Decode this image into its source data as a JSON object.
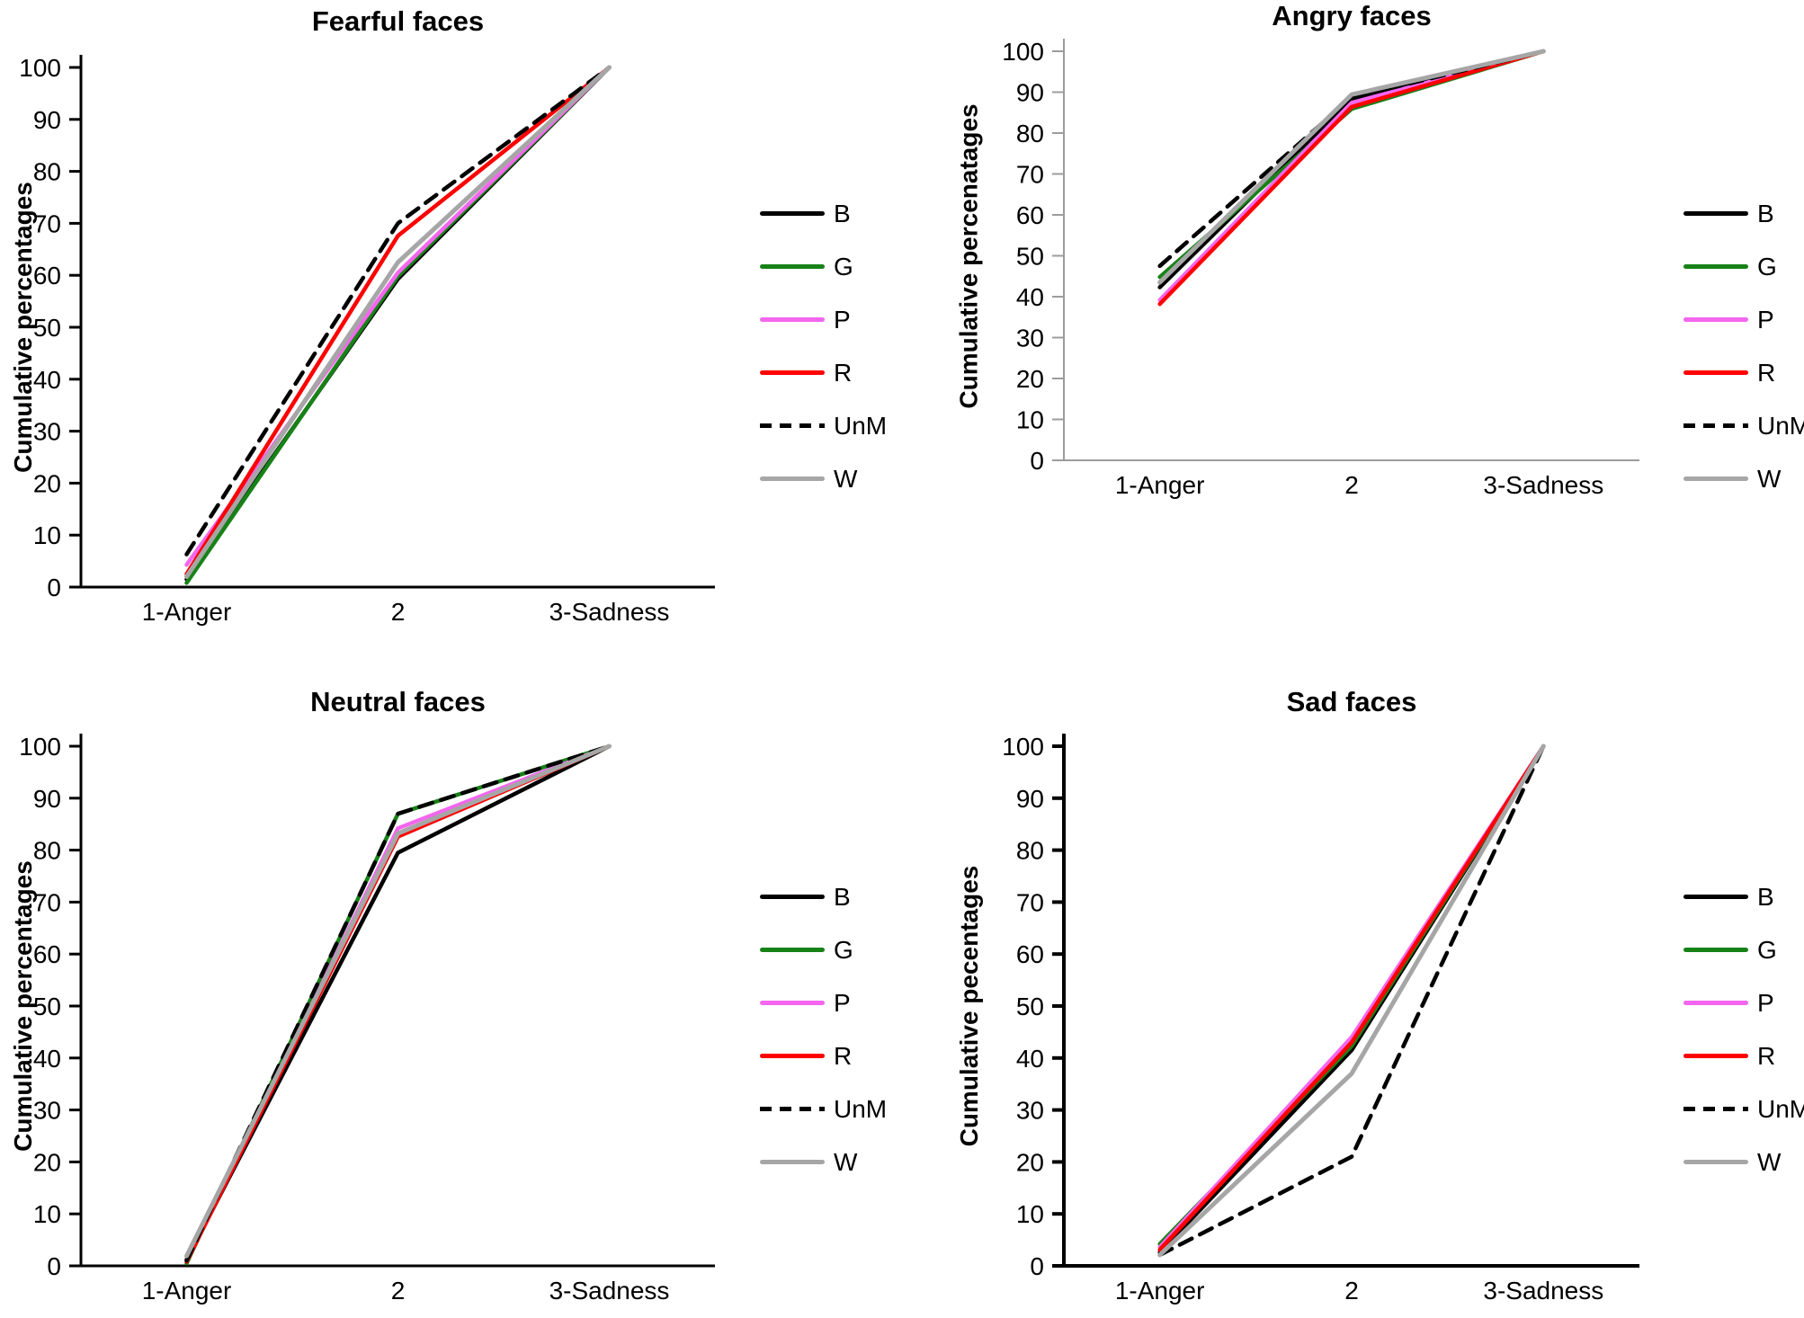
{
  "colors": {
    "B": "#000000",
    "G": "#178217",
    "P": "#f566ef",
    "R": "#fe0000",
    "UnM": "#000000",
    "W": "#a6a6a6",
    "angry_axis": "#9c9c9c",
    "default_axis": "#000000"
  },
  "legend": {
    "labels": [
      "B",
      "G",
      "P",
      "R",
      "UnM",
      "W"
    ],
    "dashed_key": "UnM",
    "position": "right"
  },
  "chart_data": [
    {
      "type": "line",
      "title": "Fearful faces",
      "ylabel": "Cumulative percentages",
      "categories": [
        "1-Anger",
        "2",
        "3-Sadness"
      ],
      "ylim": [
        0,
        100
      ],
      "yticks": [
        0,
        10,
        20,
        30,
        40,
        50,
        60,
        70,
        80,
        90,
        100
      ],
      "grid": false,
      "axis_color": "#000000",
      "legend_position": "right",
      "series": [
        {
          "name": "B",
          "values": [
            1.5,
            59.3,
            100
          ]
        },
        {
          "name": "G",
          "values": [
            0.8,
            59.8,
            100
          ]
        },
        {
          "name": "P",
          "values": [
            4.3,
            60.5,
            100
          ]
        },
        {
          "name": "R",
          "values": [
            2.5,
            67.6,
            100
          ]
        },
        {
          "name": "UnM",
          "values": [
            6.3,
            70.0,
            100
          ],
          "dashed": true
        },
        {
          "name": "W",
          "values": [
            2.0,
            62.5,
            100
          ]
        }
      ]
    },
    {
      "type": "line",
      "title": "Angry faces",
      "ylabel": "Cumulative percenatages",
      "categories": [
        "1-Anger",
        "2",
        "3-Sadness"
      ],
      "ylim": [
        0,
        100
      ],
      "yticks": [
        0,
        10,
        20,
        30,
        40,
        50,
        60,
        70,
        80,
        90,
        100
      ],
      "grid": false,
      "axis_color": "#9c9c9c",
      "legend_position": "right",
      "series": [
        {
          "name": "B",
          "values": [
            42.3,
            88.4,
            100
          ]
        },
        {
          "name": "G",
          "values": [
            44.8,
            85.9,
            100
          ]
        },
        {
          "name": "P",
          "values": [
            39.2,
            87.4,
            100
          ]
        },
        {
          "name": "R",
          "values": [
            38.2,
            86.4,
            100
          ]
        },
        {
          "name": "UnM",
          "values": [
            47.5,
            88.7,
            100
          ],
          "dashed": true
        },
        {
          "name": "W",
          "values": [
            43.5,
            89.4,
            100
          ]
        }
      ]
    },
    {
      "type": "line",
      "title": "Neutral faces",
      "ylabel": "Cumulative percentages",
      "categories": [
        "1-Anger",
        "2",
        "3-Sadness"
      ],
      "ylim": [
        0,
        100
      ],
      "yticks": [
        0,
        10,
        20,
        30,
        40,
        50,
        60,
        70,
        80,
        90,
        100
      ],
      "grid": false,
      "axis_color": "#000000",
      "legend_position": "right",
      "series": [
        {
          "name": "B",
          "values": [
            1.2,
            79.5,
            100
          ]
        },
        {
          "name": "G",
          "values": [
            0.5,
            87.0,
            100
          ]
        },
        {
          "name": "P",
          "values": [
            1.0,
            84.2,
            100
          ]
        },
        {
          "name": "R",
          "values": [
            0.8,
            82.6,
            100
          ]
        },
        {
          "name": "UnM",
          "values": [
            1.0,
            87.0,
            100
          ],
          "dashed": true
        },
        {
          "name": "W",
          "values": [
            1.9,
            83.2,
            100
          ]
        }
      ]
    },
    {
      "type": "line",
      "title": "Sad faces",
      "ylabel": "Cumulative pecentages",
      "categories": [
        "1-Anger",
        "2",
        "3-Sadness"
      ],
      "ylim": [
        0,
        100
      ],
      "yticks": [
        0,
        10,
        20,
        30,
        40,
        50,
        60,
        70,
        80,
        90,
        100
      ],
      "grid": false,
      "axis_color": "#000000",
      "legend_position": "right",
      "series": [
        {
          "name": "B",
          "values": [
            2.6,
            41.5,
            100
          ]
        },
        {
          "name": "G",
          "values": [
            4.2,
            42.3,
            100
          ]
        },
        {
          "name": "P",
          "values": [
            3.6,
            44.0,
            100
          ]
        },
        {
          "name": "R",
          "values": [
            3.1,
            43.0,
            100
          ]
        },
        {
          "name": "UnM",
          "values": [
            2.1,
            21.0,
            100
          ],
          "dashed": true
        },
        {
          "name": "W",
          "values": [
            2.1,
            37.0,
            100
          ]
        }
      ]
    }
  ]
}
